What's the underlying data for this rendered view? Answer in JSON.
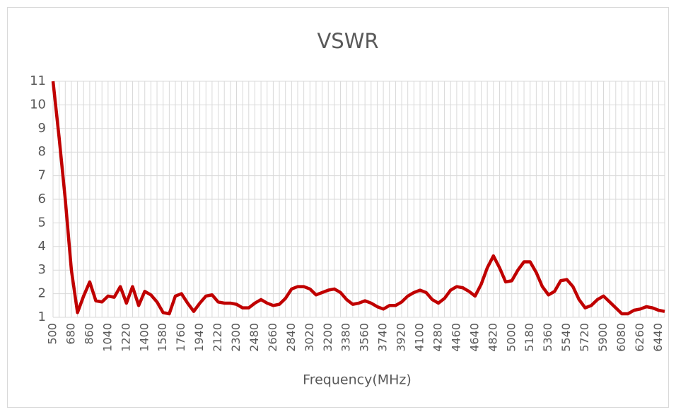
{
  "chart_data": {
    "type": "line",
    "title": "VSWR",
    "x_label": "Frequency(MHz)",
    "x": [
      500,
      560,
      620,
      680,
      740,
      800,
      860,
      920,
      980,
      1040,
      1100,
      1160,
      1220,
      1280,
      1340,
      1400,
      1460,
      1520,
      1580,
      1640,
      1700,
      1760,
      1820,
      1880,
      1940,
      2000,
      2060,
      2120,
      2180,
      2240,
      2300,
      2360,
      2420,
      2480,
      2540,
      2600,
      2660,
      2720,
      2780,
      2840,
      2900,
      2960,
      3020,
      3080,
      3140,
      3200,
      3260,
      3320,
      3380,
      3440,
      3500,
      3560,
      3620,
      3680,
      3740,
      3800,
      3860,
      3920,
      3980,
      4040,
      4100,
      4160,
      4220,
      4280,
      4340,
      4400,
      4460,
      4520,
      4580,
      4640,
      4700,
      4760,
      4820,
      4880,
      4940,
      5000,
      5060,
      5120,
      5180,
      5240,
      5300,
      5360,
      5420,
      5480,
      5540,
      5600,
      5660,
      5720,
      5780,
      5840,
      5900,
      5960,
      6020,
      6080,
      6140,
      6200,
      6260,
      6320,
      6380,
      6440,
      6500
    ],
    "series": [
      {
        "color": "#c00000",
        "values": [
          11,
          8.6,
          6.0,
          3.0,
          1.2,
          1.9,
          2.5,
          1.7,
          1.65,
          1.9,
          1.85,
          2.3,
          1.6,
          2.3,
          1.5,
          2.1,
          1.95,
          1.65,
          1.2,
          1.15,
          1.9,
          2.0,
          1.6,
          1.25,
          1.6,
          1.9,
          1.95,
          1.65,
          1.6,
          1.6,
          1.55,
          1.4,
          1.4,
          1.6,
          1.75,
          1.6,
          1.5,
          1.55,
          1.8,
          2.2,
          2.3,
          2.3,
          2.2,
          1.95,
          2.05,
          2.15,
          2.2,
          2.05,
          1.75,
          1.55,
          1.6,
          1.7,
          1.6,
          1.45,
          1.35,
          1.5,
          1.5,
          1.65,
          1.9,
          2.05,
          2.15,
          2.05,
          1.75,
          1.6,
          1.8,
          2.15,
          2.3,
          2.25,
          2.1,
          1.9,
          2.4,
          3.1,
          3.6,
          3.1,
          2.5,
          2.55,
          3.0,
          3.35,
          3.35,
          2.9,
          2.3,
          1.95,
          2.1,
          2.55,
          2.6,
          2.3,
          1.75,
          1.4,
          1.5,
          1.75,
          1.9,
          1.65,
          1.4,
          1.15,
          1.15,
          1.3,
          1.35,
          1.45,
          1.4,
          1.3,
          1.25
        ]
      }
    ],
    "xlim": [
      500,
      6500
    ],
    "xticks": [
      500,
      680,
      860,
      1040,
      1220,
      1400,
      1580,
      1760,
      1940,
      2120,
      2300,
      2480,
      2660,
      2840,
      3020,
      3200,
      3380,
      3560,
      3740,
      3920,
      4100,
      4280,
      4460,
      4640,
      4820,
      5000,
      5180,
      5360,
      5540,
      5720,
      5900,
      6080,
      6260,
      6440
    ],
    "ylim": [
      1,
      11
    ],
    "yticks": [
      1,
      2,
      3,
      4,
      5,
      6,
      7,
      8,
      9,
      10,
      11
    ],
    "grid": true
  }
}
